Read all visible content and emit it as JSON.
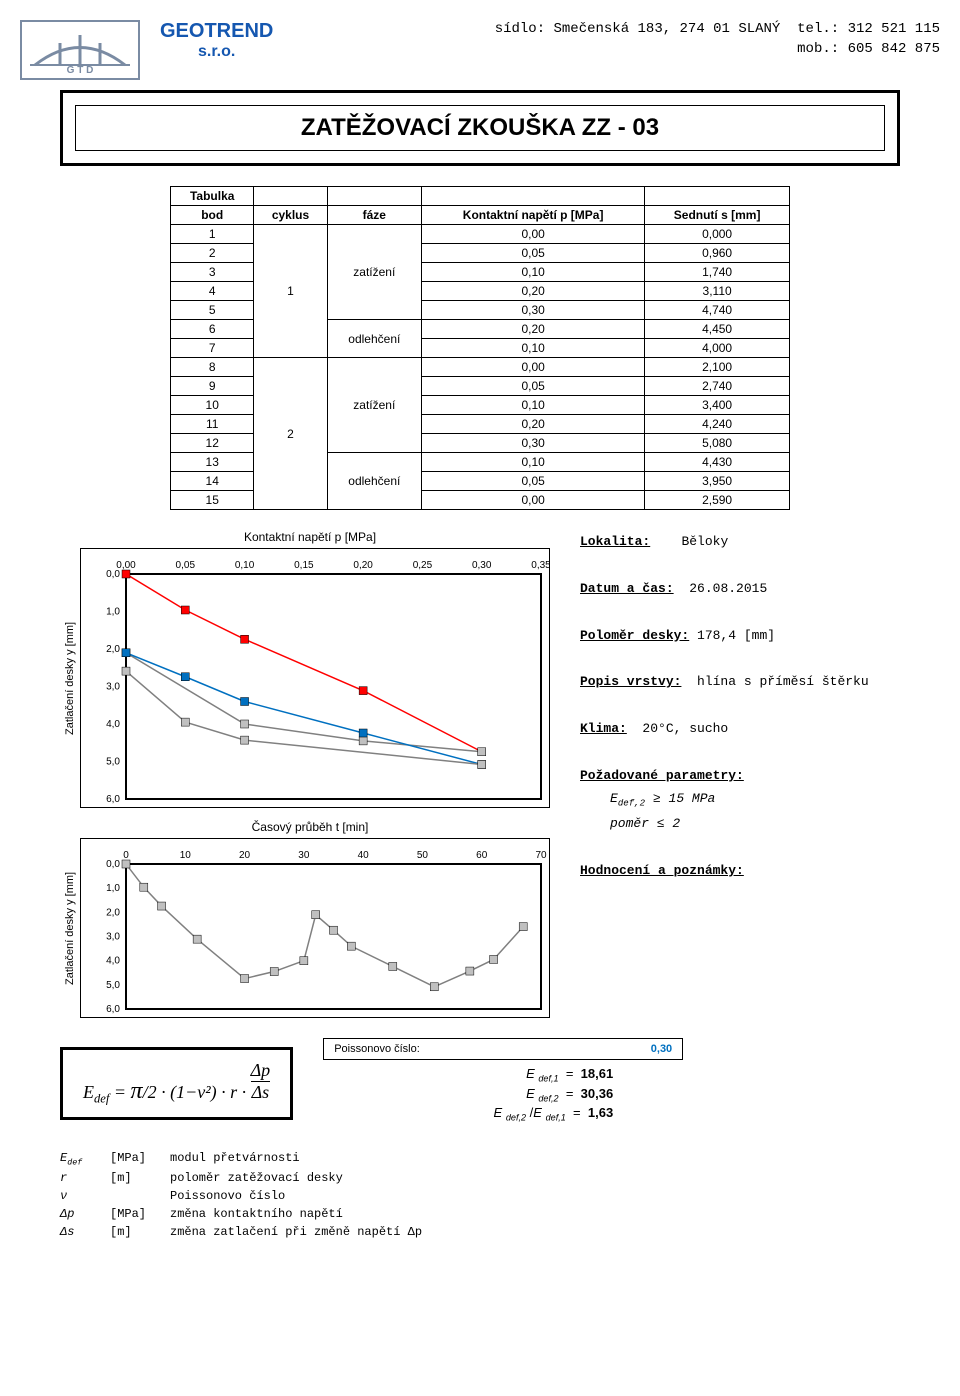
{
  "header": {
    "company_name": "GEOTREND",
    "company_sub": "s.r.o.",
    "address_line1": "sídlo:  Smečenská 183,  274 01 SLANÝ",
    "tel_label": "tel.:",
    "tel": "312 521 115",
    "mob_label": "mob.:",
    "mob": "605 842 875"
  },
  "title": "ZATĚŽOVACÍ ZKOUŠKA ZZ - 03",
  "table": {
    "header_row": [
      "Tabulka",
      "",
      "",
      "",
      ""
    ],
    "columns": [
      "bod",
      "cyklus",
      "fáze",
      "Kontaktní napětí p [MPa]",
      "Sednutí s [mm]"
    ],
    "rows": [
      {
        "bod": "1",
        "cyklus": "",
        "faze": "",
        "p": "0,00",
        "s": "0,000"
      },
      {
        "bod": "2",
        "cyklus": "",
        "faze": "",
        "p": "0,05",
        "s": "0,960"
      },
      {
        "bod": "3",
        "cyklus": "",
        "faze": "zatížení",
        "p": "0,10",
        "s": "1,740"
      },
      {
        "bod": "4",
        "cyklus": "1",
        "faze": "",
        "p": "0,20",
        "s": "3,110"
      },
      {
        "bod": "5",
        "cyklus": "",
        "faze": "",
        "p": "0,30",
        "s": "4,740"
      },
      {
        "bod": "6",
        "cyklus": "",
        "faze": "odlehčení",
        "p": "0,20",
        "s": "4,450"
      },
      {
        "bod": "7",
        "cyklus": "",
        "faze": "",
        "p": "0,10",
        "s": "4,000"
      },
      {
        "bod": "8",
        "cyklus": "",
        "faze": "",
        "p": "0,00",
        "s": "2,100"
      },
      {
        "bod": "9",
        "cyklus": "",
        "faze": "",
        "p": "0,05",
        "s": "2,740"
      },
      {
        "bod": "10",
        "cyklus": "",
        "faze": "zatížení",
        "p": "0,10",
        "s": "3,400"
      },
      {
        "bod": "11",
        "cyklus": "2",
        "faze": "",
        "p": "0,20",
        "s": "4,240"
      },
      {
        "bod": "12",
        "cyklus": "",
        "faze": "",
        "p": "0,30",
        "s": "5,080"
      },
      {
        "bod": "13",
        "cyklus": "",
        "faze": "",
        "p": "0,10",
        "s": "4,430"
      },
      {
        "bod": "14",
        "cyklus": "",
        "faze": "odlehčení",
        "p": "0,05",
        "s": "3,950"
      },
      {
        "bod": "15",
        "cyklus": "",
        "faze": "",
        "p": "0,00",
        "s": "2,590"
      }
    ]
  },
  "chart1": {
    "title": "Kontaktní napětí p [MPa]",
    "ylabel": "Zatlačení desky y [mm]",
    "xticks": [
      "0,00",
      "0,05",
      "0,10",
      "0,15",
      "0,20",
      "0,25",
      "0,30",
      "0,35"
    ],
    "yticks": [
      "0,0",
      "1,0",
      "2,0",
      "3,0",
      "4,0",
      "5,0",
      "6,0"
    ],
    "xlim": [
      0,
      0.35
    ],
    "ylim": [
      0,
      6
    ],
    "series": [
      {
        "color": "#ff0000",
        "marker": "square",
        "points": [
          [
            0,
            0
          ],
          [
            0.05,
            0.96
          ],
          [
            0.1,
            1.74
          ],
          [
            0.2,
            3.11
          ],
          [
            0.3,
            4.74
          ]
        ]
      },
      {
        "color": "#808080",
        "marker": "square",
        "points": [
          [
            0.3,
            4.74
          ],
          [
            0.2,
            4.45
          ],
          [
            0.1,
            4.0
          ],
          [
            0,
            2.1
          ]
        ]
      },
      {
        "color": "#0070c0",
        "marker": "square",
        "points": [
          [
            0,
            2.1
          ],
          [
            0.05,
            2.74
          ],
          [
            0.1,
            3.4
          ],
          [
            0.2,
            4.24
          ],
          [
            0.3,
            5.08
          ]
        ]
      },
      {
        "color": "#808080",
        "marker": "square",
        "points": [
          [
            0.3,
            5.08
          ],
          [
            0.1,
            4.43
          ],
          [
            0.05,
            3.95
          ],
          [
            0,
            2.59
          ]
        ]
      }
    ]
  },
  "chart2": {
    "title": "Časový průběh t [min]",
    "ylabel": "Zatlačení desky y [mm]",
    "xticks": [
      "0",
      "10",
      "20",
      "30",
      "40",
      "50",
      "60",
      "70"
    ],
    "yticks": [
      "0,0",
      "1,0",
      "2,0",
      "3,0",
      "4,0",
      "5,0",
      "6,0"
    ],
    "xlim": [
      0,
      70
    ],
    "ylim": [
      0,
      6
    ],
    "series": [
      {
        "color": "#808080",
        "marker": "square",
        "points": [
          [
            0,
            0
          ],
          [
            3,
            0.96
          ],
          [
            6,
            1.74
          ],
          [
            12,
            3.11
          ],
          [
            20,
            4.74
          ],
          [
            25,
            4.45
          ],
          [
            30,
            4.0
          ],
          [
            32,
            2.1
          ],
          [
            35,
            2.74
          ],
          [
            38,
            3.4
          ],
          [
            45,
            4.24
          ],
          [
            52,
            5.08
          ],
          [
            58,
            4.43
          ],
          [
            62,
            3.95
          ],
          [
            67,
            2.59
          ]
        ]
      }
    ]
  },
  "info": {
    "lokalita_label": "Lokalita:",
    "lokalita": "Běloky",
    "datum_label": "Datum a čas:",
    "datum": "26.08.2015",
    "polomer_label": "Poloměr desky:",
    "polomer": "178,4 [mm]",
    "popis_label": "Popis vrstvy:",
    "popis": "hlína s příměsí štěrku",
    "klima_label": "Klima:",
    "klima": "20°C, sucho",
    "pozadovane_label": "Požadované parametry:",
    "pozadovane_1": "E",
    "pozadovane_1_sub": "def,2",
    "pozadovane_1_rest": " ≥ 15 MPa",
    "pozadovane_2": "poměr ≤ 2",
    "hodnoceni_label": "Hodnocení a poznámky:"
  },
  "results": {
    "poisson_label": "Poissonovo číslo:",
    "poisson_val": "0,30",
    "e1_label": "E def,1  =",
    "e1_val": "18,61",
    "e2_label": "E def,2  =",
    "e2_val": "30,36",
    "ratio_label": "E def,2 /E def,1  =",
    "ratio_val": "1,63"
  },
  "formula": "E_{def} = (π/2)·(1−ν²)·r·(Δp/Δs)",
  "legend": [
    {
      "sym": "E_def",
      "unit": "[MPa]",
      "desc": "modul přetvárnosti"
    },
    {
      "sym": "r",
      "unit": "[m]",
      "desc": "poloměr zatěžovací desky"
    },
    {
      "sym": "ν",
      "unit": "",
      "desc": "Poissonovo číslo"
    },
    {
      "sym": "Δp",
      "unit": "[MPa]",
      "desc": "změna kontaktního napětí"
    },
    {
      "sym": "Δs",
      "unit": "[m]",
      "desc": "změna zatlačení při změně napětí Δp"
    }
  ]
}
